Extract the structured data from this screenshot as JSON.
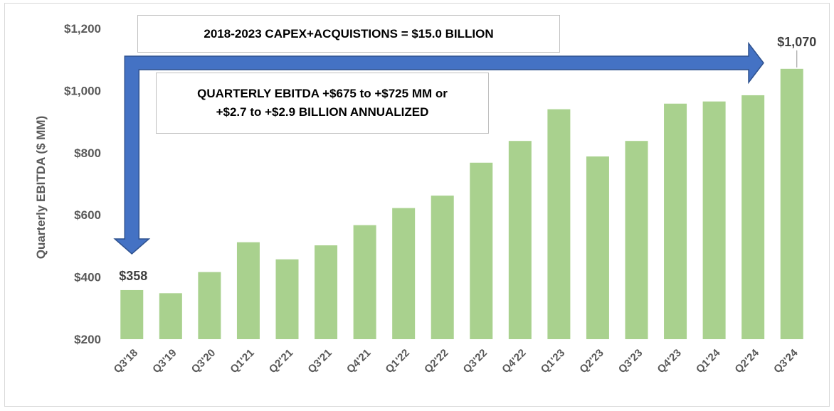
{
  "chart_data": {
    "type": "bar",
    "title": "",
    "xlabel": "",
    "ylabel": "Quarterly  EBITDA ($ MM)",
    "categories": [
      "Q3'18",
      "Q3'19",
      "Q3'20",
      "Q1'21",
      "Q2'21",
      "Q3'21",
      "Q4'21",
      "Q1'22",
      "Q2'22",
      "Q3'22",
      "Q4'22",
      "Q1'23",
      "Q2'23",
      "Q3'23",
      "Q4'23",
      "Q1'24",
      "Q2'24",
      "Q3'24"
    ],
    "values": [
      358,
      348,
      416,
      512,
      457,
      502,
      567,
      622,
      662,
      768,
      838,
      940,
      788,
      838,
      958,
      965,
      985,
      1070
    ],
    "ylim": [
      200,
      1200
    ],
    "yticks": [
      200,
      400,
      600,
      800,
      1000,
      1200
    ],
    "ytick_labels": [
      "$200",
      "$400",
      "$600",
      "$800",
      "$1,000",
      "$1,200"
    ],
    "data_labels": [
      {
        "category": "Q3'18",
        "text": "$358"
      },
      {
        "category": "Q3'24",
        "text": "$1,070"
      }
    ],
    "grid": false,
    "bar_color": "#a9d18e",
    "arrow_color": "#4472c4",
    "arrow_outline": "#2f528f"
  },
  "annotations": {
    "capex": "2018-2023 CAPEX+ACQUISTIONS = $15.0 BILLION",
    "ebitda_line1": "QUARTERLY EBITDA +$675 to +$725 MM or",
    "ebitda_line2": "+$2.7 to +$2.9 BILLION ANNUALIZED"
  }
}
